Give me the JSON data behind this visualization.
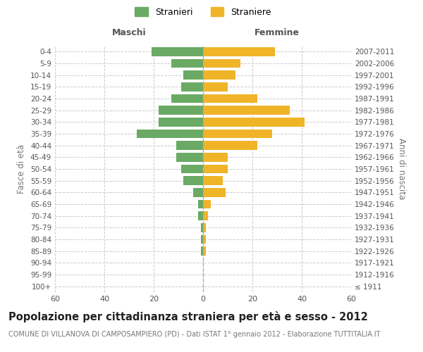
{
  "age_groups": [
    "100+",
    "95-99",
    "90-94",
    "85-89",
    "80-84",
    "75-79",
    "70-74",
    "65-69",
    "60-64",
    "55-59",
    "50-54",
    "45-49",
    "40-44",
    "35-39",
    "30-34",
    "25-29",
    "20-24",
    "15-19",
    "10-14",
    "5-9",
    "0-4"
  ],
  "birth_years": [
    "≤ 1911",
    "1912-1916",
    "1917-1921",
    "1922-1926",
    "1927-1931",
    "1932-1936",
    "1937-1941",
    "1942-1946",
    "1947-1951",
    "1952-1956",
    "1957-1961",
    "1962-1966",
    "1967-1971",
    "1972-1976",
    "1977-1981",
    "1982-1986",
    "1987-1991",
    "1992-1996",
    "1997-2001",
    "2002-2006",
    "2007-2011"
  ],
  "maschi": [
    0,
    0,
    0,
    1,
    1,
    1,
    2,
    2,
    4,
    8,
    9,
    11,
    11,
    27,
    18,
    18,
    13,
    9,
    8,
    13,
    21
  ],
  "femmine": [
    0,
    0,
    0,
    1,
    1,
    1,
    2,
    3,
    9,
    8,
    10,
    10,
    22,
    28,
    41,
    35,
    22,
    10,
    13,
    15,
    29
  ],
  "male_color": "#6aaa64",
  "female_color": "#f0b429",
  "bg_color": "#ffffff",
  "grid_color": "#cccccc",
  "title": "Popolazione per cittadinanza straniera per età e sesso - 2012",
  "subtitle": "COMUNE DI VILLANOVA DI CAMPOSAMPIERO (PD) - Dati ISTAT 1° gennaio 2012 - Elaborazione TUTTITALIA.IT",
  "xlabel_left": "Maschi",
  "xlabel_right": "Femmine",
  "ylabel_left": "Fasce di età",
  "ylabel_right": "Anni di nascita",
  "legend_male": "Stranieri",
  "legend_female": "Straniere",
  "xlim": 60,
  "title_fontsize": 10.5,
  "subtitle_fontsize": 7.0
}
